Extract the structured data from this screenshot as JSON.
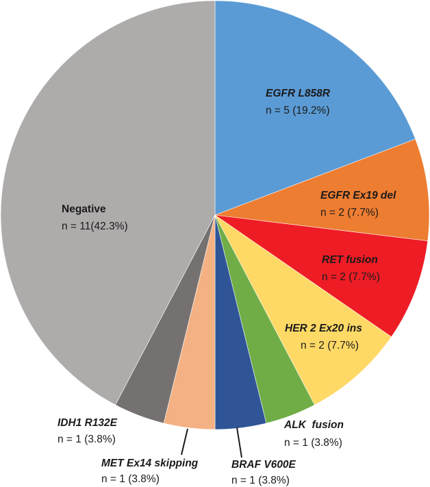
{
  "chart_data": {
    "type": "pie",
    "title": "",
    "total": 26,
    "start": "12 o'clock, clockwise",
    "slices": [
      {
        "label": "EGFR L858R",
        "value_text": "n = 5 (19.2%)",
        "count": 5,
        "percent": 19.2,
        "color": "#5B9BD5",
        "label_style": "bold-italic"
      },
      {
        "label": "EGFR Ex19 del",
        "value_text": "n = 2 (7.7%)",
        "count": 2,
        "percent": 7.7,
        "color": "#ED7D31",
        "label_style": "bold-italic"
      },
      {
        "label": "RET fusion",
        "value_text": "n = 2 (7.7%)",
        "count": 2,
        "percent": 7.7,
        "color": "#EE1C25",
        "label_style": "bold-italic"
      },
      {
        "label": "HER 2 Ex20 ins",
        "value_text": "n = 2 (7.7%)",
        "count": 2,
        "percent": 7.7,
        "color": "#FFD966",
        "label_style": "bold-italic"
      },
      {
        "label": "ALK  fusion",
        "value_text": "n = 1 (3.8%)",
        "count": 1,
        "percent": 3.8,
        "color": "#70AD47",
        "label_style": "bold-italic"
      },
      {
        "label": "BRAF V600E",
        "value_text": "n = 1 (3.8%)",
        "count": 1,
        "percent": 3.8,
        "color": "#2F5597",
        "label_style": "bold-italic"
      },
      {
        "label": "MET Ex14 skipping",
        "value_text": "n = 1 (3.8%)",
        "count": 1,
        "percent": 3.8,
        "color": "#F4B183",
        "label_style": "bold-italic"
      },
      {
        "label": "IDH1 R132E",
        "value_text": "n = 1 (3.8%)",
        "count": 1,
        "percent": 3.8,
        "color": "#767171",
        "label_style": "bold-italic"
      },
      {
        "label": "Negative",
        "value_text": "n = 11(42.3%)",
        "count": 11,
        "percent": 42.3,
        "color": "#AEABAB",
        "label_style": "bold"
      }
    ]
  }
}
